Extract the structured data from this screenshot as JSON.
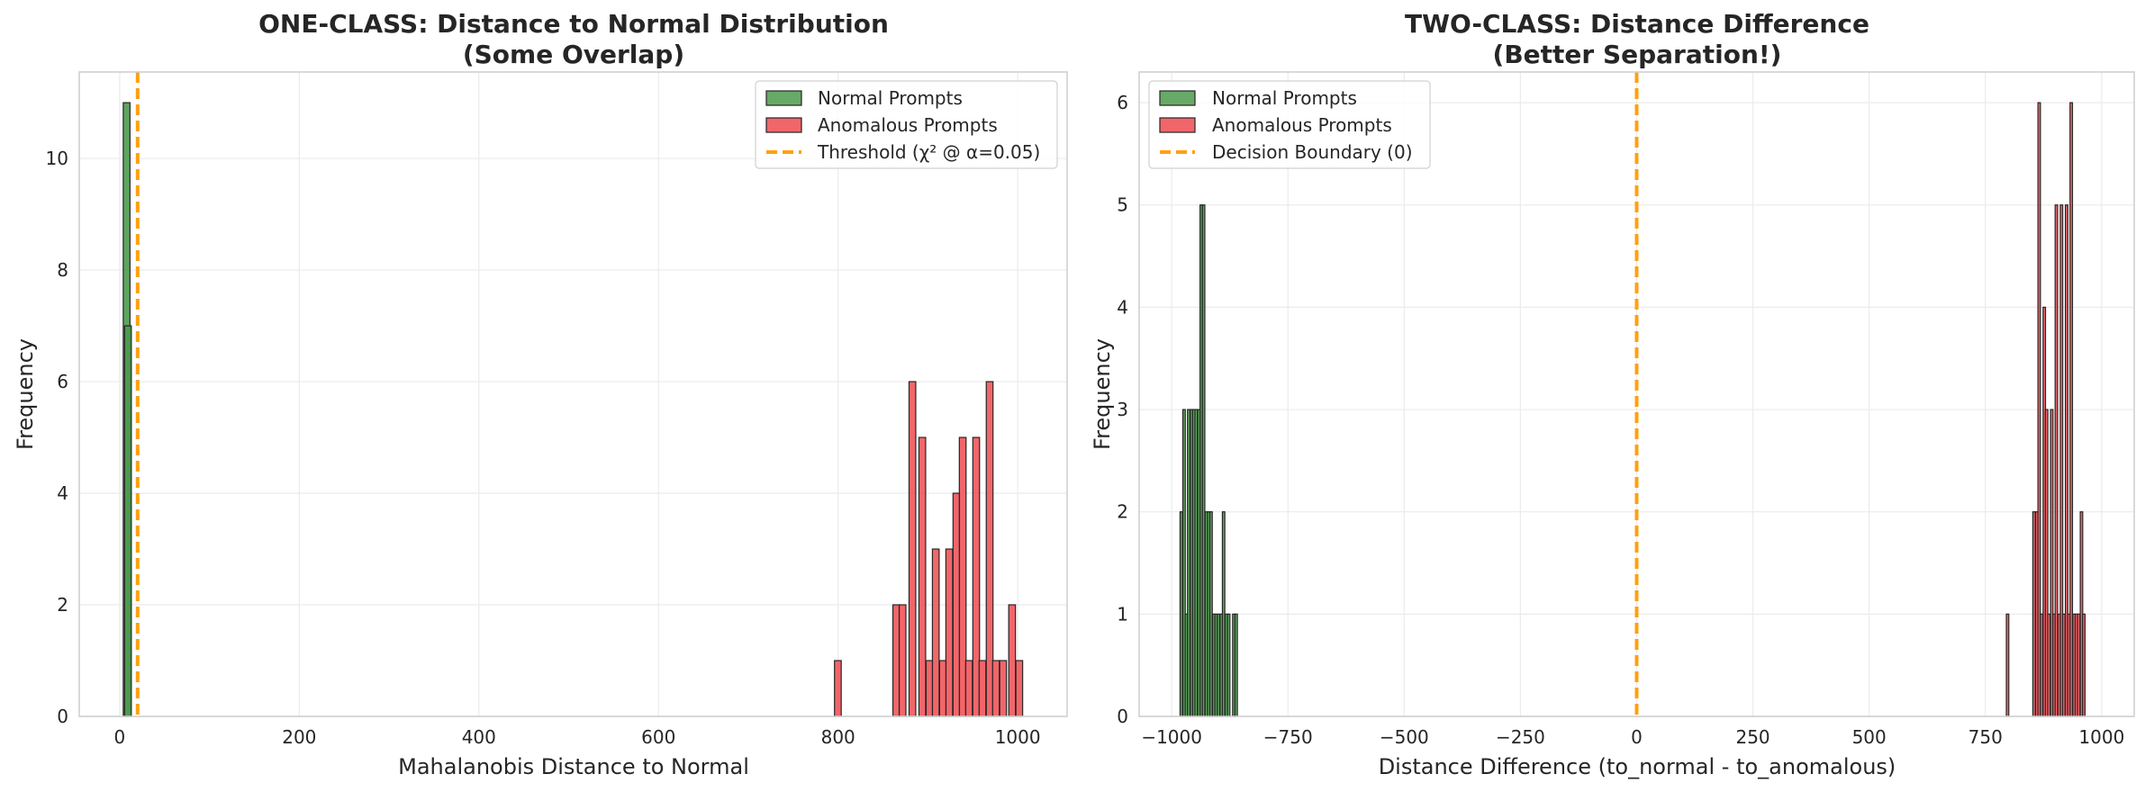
{
  "chart_data": [
    {
      "type": "bar",
      "title": "ONE-CLASS: Distance to Normal Distribution",
      "subtitle": "(Some Overlap)",
      "xlabel": "Mahalanobis Distance to Normal",
      "ylabel": "Frequency",
      "xlim": [
        -45,
        1055
      ],
      "ylim": [
        0,
        11.55
      ],
      "xticks": [
        0,
        200,
        400,
        600,
        800,
        1000
      ],
      "xtick_labels": [
        "0",
        "200",
        "400",
        "600",
        "800",
        "1000"
      ],
      "yticks": [
        0,
        2,
        4,
        6,
        8,
        10
      ],
      "ytick_labels": [
        "0",
        "2",
        "4",
        "6",
        "8",
        "10"
      ],
      "grid": true,
      "legend_position": "top-right",
      "bin_width": 7.5,
      "series": [
        {
          "name": "Normal Prompts",
          "color": "#4c9a4c",
          "bins": [
            [
              4,
              11
            ],
            [
              5.5,
              7
            ]
          ]
        },
        {
          "name": "Anomalous Prompts",
          "color": "#f0555a",
          "bins": [
            [
              796,
              1
            ],
            [
              861,
              2
            ],
            [
              868,
              2
            ],
            [
              879,
              6
            ],
            [
              890,
              5
            ],
            [
              898,
              1
            ],
            [
              905,
              3
            ],
            [
              913,
              1
            ],
            [
              920,
              3
            ],
            [
              928,
              4
            ],
            [
              935,
              5
            ],
            [
              942,
              1
            ],
            [
              950,
              5
            ],
            [
              957,
              1
            ],
            [
              965,
              6
            ],
            [
              972,
              1
            ],
            [
              980,
              1
            ],
            [
              990,
              2
            ],
            [
              998,
              1
            ]
          ]
        }
      ],
      "lines": [
        {
          "name": "Threshold (χ² @ α=0.05)",
          "x": 20,
          "color": "#ffa010"
        }
      ]
    },
    {
      "type": "bar",
      "title": "TWO-CLASS: Distance Difference",
      "subtitle": "(Better Separation!)",
      "xlabel": "Distance Difference (to_normal - to_anomalous)",
      "ylabel": "Frequency",
      "xlim": [
        -1070,
        1070
      ],
      "ylim": [
        0,
        6.3
      ],
      "xticks": [
        -1000,
        -750,
        -500,
        -250,
        0,
        250,
        500,
        750,
        1000
      ],
      "xtick_labels": [
        "−1000",
        "−750",
        "−500",
        "−250",
        "0",
        "250",
        "500",
        "750",
        "1000"
      ],
      "yticks": [
        0,
        1,
        2,
        3,
        4,
        5,
        6
      ],
      "ytick_labels": [
        "0",
        "1",
        "2",
        "3",
        "4",
        "5",
        "6"
      ],
      "grid": true,
      "legend_position": "top-left",
      "bin_width": 5.3,
      "series": [
        {
          "name": "Normal Prompts",
          "color": "#4c9a4c",
          "bins": [
            [
              -982,
              2
            ],
            [
              -976,
              3
            ],
            [
              -971,
              1
            ],
            [
              -966,
              3
            ],
            [
              -960,
              3
            ],
            [
              -955,
              3
            ],
            [
              -950,
              3
            ],
            [
              -944,
              3
            ],
            [
              -939,
              5
            ],
            [
              -934,
              5
            ],
            [
              -928,
              2
            ],
            [
              -923,
              2
            ],
            [
              -918,
              2
            ],
            [
              -912,
              1
            ],
            [
              -907,
              1
            ],
            [
              -902,
              1
            ],
            [
              -896,
              1
            ],
            [
              -891,
              2
            ],
            [
              -885,
              1
            ],
            [
              -880,
              1
            ],
            [
              -869,
              1
            ],
            [
              -864,
              1
            ]
          ]
        },
        {
          "name": "Anomalous Prompts",
          "color": "#f0555a",
          "bins": [
            [
              795,
              1
            ],
            [
              852,
              2
            ],
            [
              858,
              2
            ],
            [
              863,
              6
            ],
            [
              868,
              1
            ],
            [
              874,
              4
            ],
            [
              879,
              3
            ],
            [
              884,
              1
            ],
            [
              890,
              3
            ],
            [
              895,
              1
            ],
            [
              900,
              5
            ],
            [
              906,
              1
            ],
            [
              911,
              5
            ],
            [
              916,
              1
            ],
            [
              922,
              5
            ],
            [
              927,
              1
            ],
            [
              932,
              6
            ],
            [
              938,
              1
            ],
            [
              943,
              1
            ],
            [
              948,
              1
            ],
            [
              954,
              2
            ],
            [
              959,
              1
            ]
          ]
        }
      ],
      "lines": [
        {
          "name": "Decision Boundary (0)",
          "x": 0,
          "color": "#ffa010"
        }
      ]
    }
  ]
}
